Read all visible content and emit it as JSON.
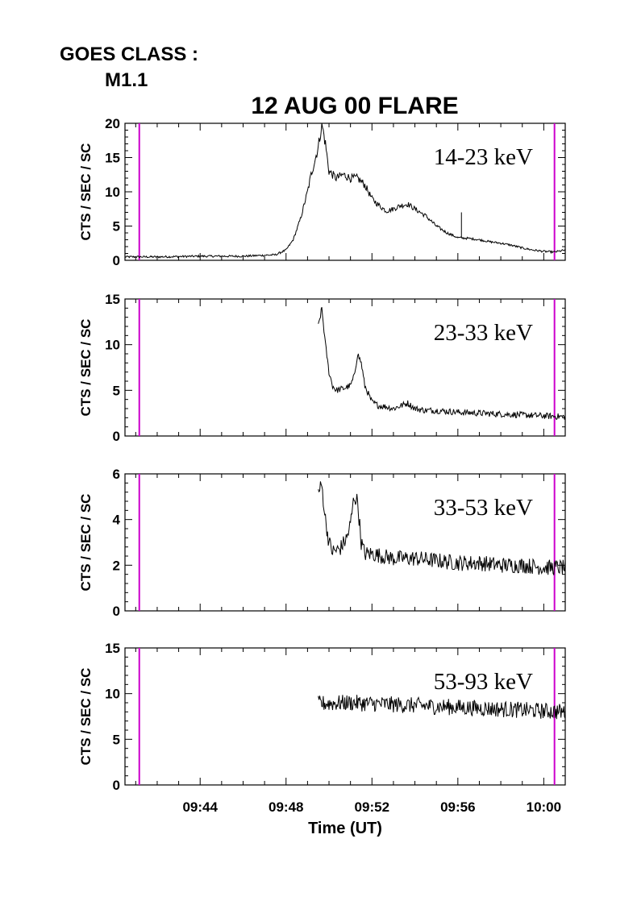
{
  "header": {
    "goes_label": "GOES CLASS :",
    "goes_class": "M1.1"
  },
  "chart_data": {
    "type": "line",
    "title": "12 AUG 00 FLARE",
    "xlabel": "Time (UT)",
    "xlim": [
      "09:40:30",
      "10:01:00"
    ],
    "x_ticks": [
      "09:44",
      "09:48",
      "09:52",
      "09:56",
      "10:00"
    ],
    "markers": {
      "color": "#cc00cc",
      "times": [
        "09:41:10",
        "10:00:30"
      ]
    },
    "line_color": "#000000",
    "panels": [
      {
        "band": "14-23 keV",
        "ylabel": "CTS / SEC / SC",
        "ylim": [
          0,
          20
        ],
        "y_ticks": [
          "0",
          "5",
          "10",
          "15",
          "20"
        ],
        "series": {
          "x": [
            "09:40:30",
            "09:42:00",
            "09:44:00",
            "09:46:00",
            "09:47:30",
            "09:48:00",
            "09:48:20",
            "09:48:40",
            "09:49:00",
            "09:49:10",
            "09:49:20",
            "09:49:30",
            "09:49:40",
            "09:49:50",
            "09:50:00",
            "09:50:20",
            "09:50:40",
            "09:51:00",
            "09:51:20",
            "09:51:40",
            "09:52:00",
            "09:52:20",
            "09:52:40",
            "09:53:00",
            "09:53:20",
            "09:53:40",
            "09:54:00",
            "09:54:30",
            "09:55:00",
            "09:55:30",
            "09:56:00",
            "09:56:30",
            "09:57:00",
            "09:57:30",
            "09:58:00",
            "09:58:30",
            "09:59:00",
            "09:59:30",
            "10:00:00",
            "10:00:30",
            "10:01:00"
          ],
          "y": [
            0.5,
            0.5,
            0.6,
            0.6,
            0.8,
            1.5,
            3.0,
            6.0,
            10.0,
            12.5,
            14.5,
            16.5,
            20.0,
            17.0,
            13.0,
            12.0,
            12.5,
            12.0,
            12.0,
            11.0,
            9.0,
            8.0,
            7.2,
            7.5,
            8.0,
            8.2,
            7.5,
            6.5,
            5.0,
            4.0,
            3.3,
            3.2,
            3.0,
            2.7,
            2.5,
            2.2,
            1.8,
            1.5,
            1.3,
            1.2,
            1.5
          ]
        },
        "spike": {
          "x": "09:56:10",
          "y": 7.0
        }
      },
      {
        "band": "23-33 keV",
        "ylabel": "CTS / SEC / SC",
        "ylim": [
          0,
          15
        ],
        "y_ticks": [
          "0",
          "5",
          "10",
          "15"
        ],
        "series": {
          "x": [
            "09:49:30",
            "09:49:40",
            "09:49:50",
            "09:50:00",
            "09:50:10",
            "09:50:20",
            "09:50:40",
            "09:51:00",
            "09:51:10",
            "09:51:20",
            "09:51:30",
            "09:51:40",
            "09:52:00",
            "09:52:20",
            "09:52:40",
            "09:53:00",
            "09:53:20",
            "09:53:40",
            "09:54:00",
            "09:54:30",
            "09:55:00",
            "09:56:00",
            "09:57:00",
            "09:58:00",
            "09:59:00",
            "10:00:00",
            "10:01:00"
          ],
          "y": [
            12.0,
            14.0,
            10.0,
            7.0,
            5.5,
            5.0,
            5.2,
            5.5,
            6.5,
            9.0,
            8.0,
            5.5,
            3.7,
            3.3,
            3.2,
            3.0,
            3.3,
            3.6,
            3.0,
            2.8,
            2.8,
            2.6,
            2.5,
            2.4,
            2.3,
            2.2,
            2.1
          ]
        },
        "noise": 0.35
      },
      {
        "band": "33-53 keV",
        "ylabel": "CTS / SEC / SC",
        "ylim": [
          0,
          6
        ],
        "y_ticks": [
          "0",
          "2",
          "4",
          "6"
        ],
        "series": {
          "x": [
            "09:49:30",
            "09:49:40",
            "09:49:50",
            "09:50:00",
            "09:50:10",
            "09:50:30",
            "09:50:50",
            "09:51:00",
            "09:51:10",
            "09:51:20",
            "09:51:30",
            "09:51:40",
            "09:52:00",
            "09:52:30",
            "09:53:00",
            "09:54:00",
            "09:55:00",
            "09:56:00",
            "09:57:00",
            "09:58:00",
            "09:59:00",
            "10:00:00",
            "10:01:00"
          ],
          "y": [
            5.2,
            5.5,
            4.0,
            3.0,
            2.6,
            2.7,
            3.2,
            3.8,
            5.0,
            4.8,
            3.0,
            2.5,
            2.5,
            2.4,
            2.3,
            2.3,
            2.2,
            2.1,
            2.1,
            2.0,
            2.0,
            1.9,
            1.9
          ]
        },
        "noise": 0.35
      },
      {
        "band": "53-93 keV",
        "ylabel": "CTS / SEC / SC",
        "ylim": [
          0,
          15
        ],
        "y_ticks": [
          "0",
          "5",
          "10",
          "15"
        ],
        "series": {
          "x": [
            "09:49:30",
            "09:51:00",
            "09:53:00",
            "09:55:00",
            "09:57:00",
            "09:59:00",
            "10:01:00"
          ],
          "y": [
            8.9,
            9.0,
            8.8,
            8.6,
            8.4,
            8.2,
            8.0
          ]
        },
        "noise": 0.9
      }
    ]
  }
}
